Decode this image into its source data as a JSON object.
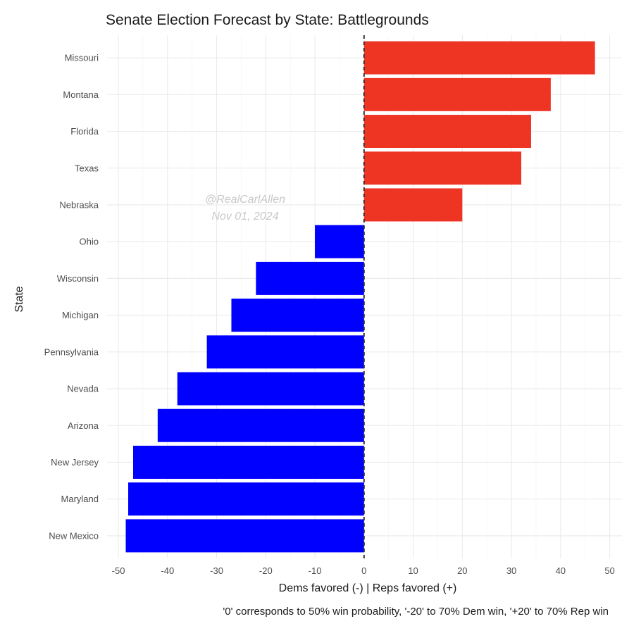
{
  "chart_data": {
    "type": "bar",
    "orientation": "horizontal",
    "title": "Senate Election Forecast by State: Battlegrounds",
    "xlabel": "Dems favored (-) | Reps favored (+)",
    "ylabel": "State",
    "caption": "'0' corresponds to 50% win probability, '-20' to 70% Dem win, '+20' to 70% Rep win",
    "watermark": [
      "@RealCarlAllen",
      "Nov 01, 2024"
    ],
    "xlim": [
      -50,
      50
    ],
    "xticks": [
      -50,
      -40,
      -30,
      -20,
      -10,
      0,
      10,
      20,
      30,
      40,
      50
    ],
    "grid": true,
    "reference_line": 0,
    "colors": {
      "rep": "#ee3524",
      "dem": "#0000ff"
    },
    "categories": [
      "Missouri",
      "Montana",
      "Florida",
      "Texas",
      "Nebraska",
      "Ohio",
      "Wisconsin",
      "Michigan",
      "Pennsylvania",
      "Nevada",
      "Arizona",
      "New Jersey",
      "Maryland",
      "New Mexico"
    ],
    "values": [
      47,
      38,
      34,
      32,
      20,
      -10,
      -22,
      -27,
      -32,
      -38,
      -42,
      -47,
      -48,
      -48.5
    ]
  }
}
